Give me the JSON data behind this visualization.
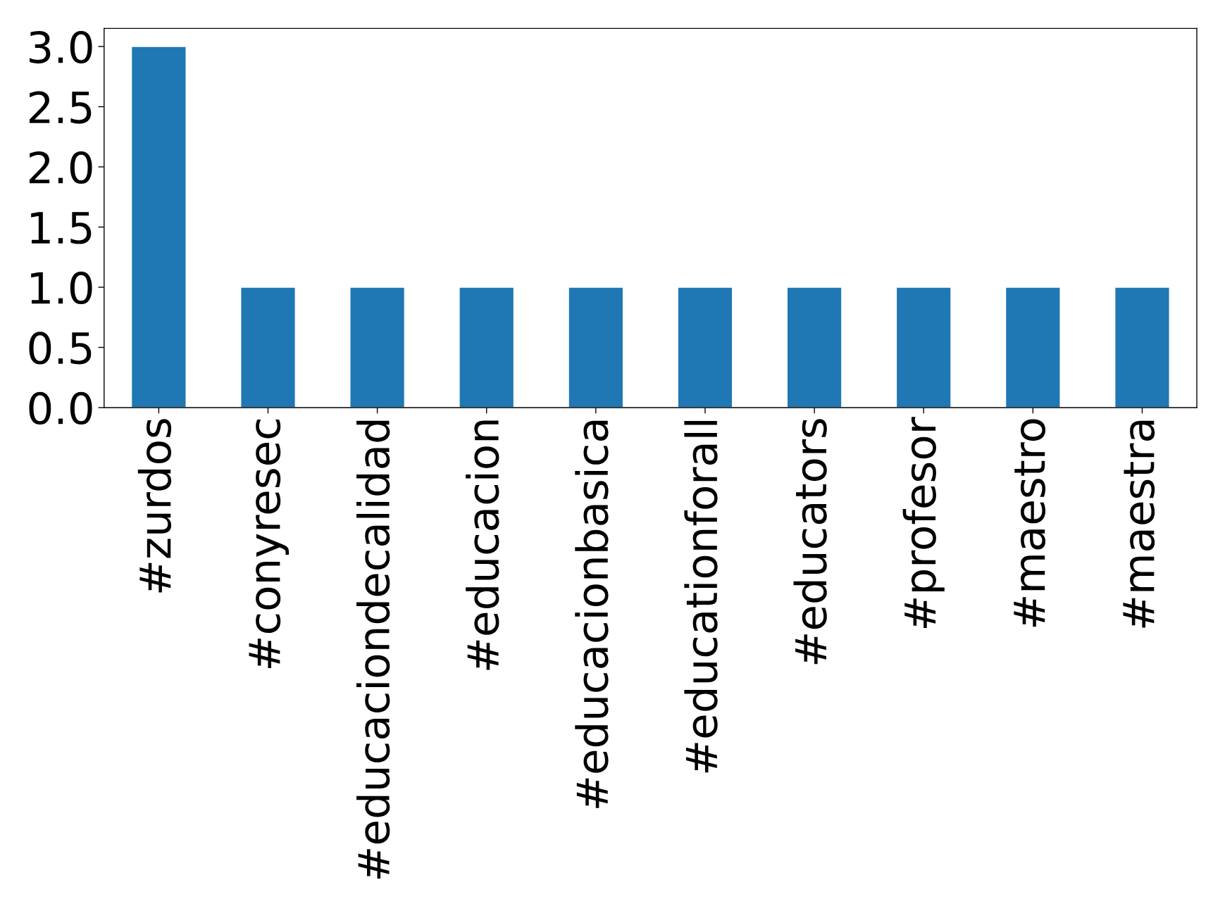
{
  "chart_data": {
    "type": "bar",
    "categories": [
      "#zurdos",
      "#conyresec",
      "#educaciondecalidad",
      "#educacion",
      "#educacionbasica",
      "#educationforall",
      "#educators",
      "#profesor",
      "#maestro",
      "#maestra"
    ],
    "values": [
      3,
      1,
      1,
      1,
      1,
      1,
      1,
      1,
      1,
      1
    ],
    "color": "#1f77b4",
    "ylim": [
      0,
      3.15
    ],
    "yticks": [
      {
        "value": 0,
        "label": "0.0"
      },
      {
        "value": 0.5,
        "label": "0.5"
      },
      {
        "value": 1,
        "label": "1.0"
      },
      {
        "value": 1.5,
        "label": "1.5"
      },
      {
        "value": 2,
        "label": "2.0"
      },
      {
        "value": 2.5,
        "label": "2.5"
      },
      {
        "value": 3,
        "label": "3.0"
      }
    ],
    "grid": false
  }
}
